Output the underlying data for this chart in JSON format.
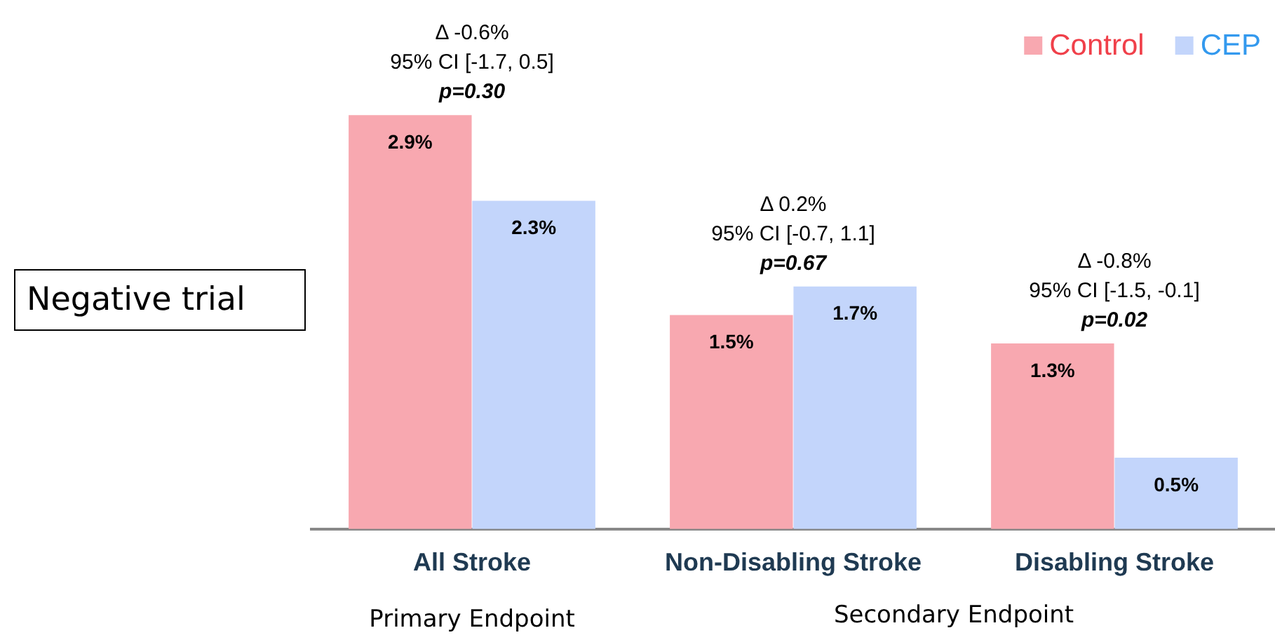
{
  "chart_data": {
    "type": "bar",
    "categories": [
      "All Stroke",
      "Non-Disabling Stroke",
      "Disabling Stroke"
    ],
    "series": [
      {
        "name": "Control",
        "color": "#f8a8b0",
        "values": [
          2.9,
          1.5,
          1.3
        ],
        "value_labels": [
          "2.9%",
          "1.5%",
          "1.3%"
        ]
      },
      {
        "name": "CEP",
        "color": "#c3d5fb",
        "values": [
          2.3,
          1.7,
          0.5
        ],
        "value_labels": [
          "2.3%",
          "1.7%",
          "0.5%"
        ]
      }
    ],
    "grid": false,
    "legend": "top right",
    "tick_labels": "x",
    "annotations": [
      {
        "text": "Δ -0.6%\n95% CI [-1.7, 0.5]\np=0.30",
        "x": "All Stroke",
        "y": 2.9
      },
      {
        "text": "Δ 0.2%\n95% CI [-0.7, 1.1]\np=0.67",
        "x": "Non-Disabling Stroke",
        "y": 1.7
      },
      {
        "text": "Δ -0.8%\n95% CI [-1.5, -0.1]\np=0.02",
        "x": "Disabling Stroke",
        "y": 1.3
      },
      "Negative trial",
      "Primary Endpoint",
      "Secondary Endpoint"
    ]
  }
}
